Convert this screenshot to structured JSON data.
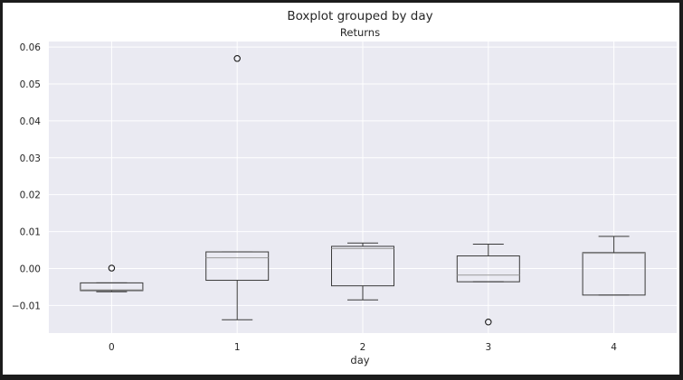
{
  "chart_data": {
    "type": "box",
    "title": "Boxplot grouped by day",
    "subtitle": "Returns",
    "xlabel": "day",
    "ylabel": "",
    "categories": [
      "0",
      "1",
      "2",
      "3",
      "4"
    ],
    "ylim": [
      -0.0175,
      0.0615
    ],
    "yticks": [
      -0.01,
      0.0,
      0.01,
      0.02,
      0.03,
      0.04,
      0.05,
      0.06
    ],
    "ytick_labels": [
      "−0.01",
      "0.00",
      "0.01",
      "0.02",
      "0.03",
      "0.04",
      "0.05",
      "0.06"
    ],
    "grid": true,
    "boxes": [
      {
        "category": "0",
        "whisker_low": -0.0063,
        "q1": -0.006,
        "median": -0.0058,
        "q3": -0.0039,
        "whisker_high": -0.0039,
        "outliers": [
          0.0001
        ]
      },
      {
        "category": "1",
        "whisker_low": -0.0139,
        "q1": -0.0032,
        "median": 0.0029,
        "q3": 0.0045,
        "whisker_high": 0.0045,
        "outliers": [
          0.0569
        ]
      },
      {
        "category": "2",
        "whisker_low": -0.0085,
        "q1": -0.0047,
        "median": 0.0054,
        "q3": 0.006,
        "whisker_high": 0.0069,
        "outliers": []
      },
      {
        "category": "3",
        "whisker_low": -0.0036,
        "q1": -0.0036,
        "median": -0.0018,
        "q3": 0.0034,
        "whisker_high": 0.0066,
        "outliers": [
          -0.0145
        ]
      },
      {
        "category": "4",
        "whisker_low": -0.0072,
        "q1": -0.0072,
        "median": 0.0041,
        "q3": 0.0043,
        "whisker_high": 0.0087,
        "outliers": []
      }
    ],
    "colors": {
      "plot_background": "#eaeaf2",
      "grid": "#ffffff",
      "box_edge": "#3a3a3a",
      "median": "#9a9a9a",
      "text": "#262626"
    }
  }
}
